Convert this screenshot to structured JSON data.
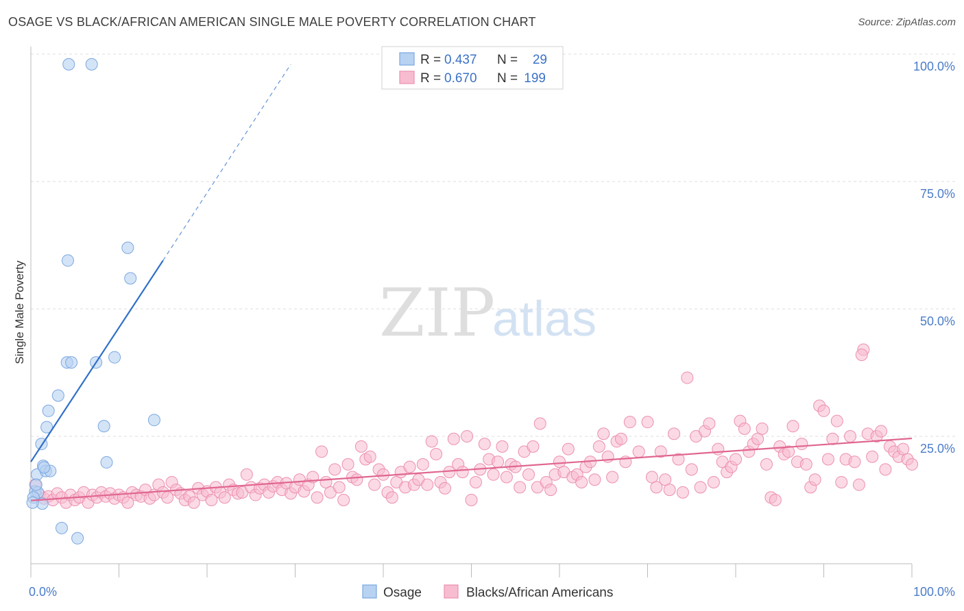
{
  "title": "OSAGE VS BLACK/AFRICAN AMERICAN SINGLE MALE POVERTY CORRELATION CHART",
  "source": "Source: ZipAtlas.com",
  "watermark": {
    "zip": "ZIP",
    "atlas": "atlas"
  },
  "colors": {
    "osage_fill": "#b8d2f2",
    "osage_stroke": "#7aa6df",
    "osage_line": "#2f6fc8",
    "black_fill": "#f7bcd0",
    "black_stroke": "#ec8fae",
    "black_line": "#e0668f",
    "tick": "#4a7cc9",
    "grid": "#dddddd"
  },
  "legend_top": {
    "rows": [
      {
        "r_label": "R =",
        "r_value": "0.437",
        "n_label": "N =",
        "n_value": "29"
      },
      {
        "r_label": "R =",
        "r_value": "0.670",
        "n_label": "N =",
        "n_value": "199"
      }
    ]
  },
  "legend_bottom": [
    "Osage",
    "Blacks/African Americans"
  ],
  "chart_data": {
    "type": "scatter",
    "xlabel": "",
    "ylabel": "Single Male Poverty",
    "xlim": [
      0,
      100
    ],
    "ylim": [
      0,
      100
    ],
    "x_tick_labels": [
      "0.0%",
      "100.0%"
    ],
    "y_tick_labels": [
      {
        "value": 25,
        "label": "25.0%"
      },
      {
        "value": 50,
        "label": "50.0%"
      },
      {
        "value": 75,
        "label": "75.0%"
      },
      {
        "value": 100,
        "label": "100.0%"
      }
    ],
    "grid": true,
    "legend_placement": "top-center and bottom",
    "series": [
      {
        "name": "Osage",
        "r": 0.437,
        "n": 29,
        "trend": {
          "x0": 0,
          "y0": 20.0,
          "x1": 15,
          "y1": 59.5,
          "dash_to_x": 29.5,
          "dash_to_y": 98
        },
        "points": [
          [
            4.3,
            98
          ],
          [
            6.9,
            98
          ],
          [
            0.7,
            17.5
          ],
          [
            0.5,
            14.2
          ],
          [
            0.8,
            14.0
          ],
          [
            1.2,
            23.5
          ],
          [
            1.4,
            19.2
          ],
          [
            1.7,
            18.2
          ],
          [
            2.2,
            18.2
          ],
          [
            1.5,
            18.9
          ],
          [
            2.0,
            30.0
          ],
          [
            1.8,
            26.8
          ],
          [
            3.1,
            33.0
          ],
          [
            4.1,
            39.5
          ],
          [
            4.6,
            39.5
          ],
          [
            7.4,
            39.5
          ],
          [
            9.5,
            40.5
          ],
          [
            4.2,
            59.5
          ],
          [
            11.3,
            56.0
          ],
          [
            11.0,
            62.0
          ],
          [
            8.3,
            27.0
          ],
          [
            8.6,
            19.9
          ],
          [
            14.0,
            28.2
          ],
          [
            3.5,
            7.0
          ],
          [
            5.3,
            5.0
          ],
          [
            0.3,
            13.0
          ],
          [
            1.3,
            11.8
          ],
          [
            0.6,
            15.5
          ],
          [
            0.2,
            12.0
          ]
        ]
      },
      {
        "name": "Blacks/African Americans",
        "r": 0.67,
        "n": 199,
        "trend": {
          "x0": 0,
          "y0": 12.4,
          "x1": 100,
          "y1": 24.6
        },
        "points": [
          [
            0.5,
            15.5
          ],
          [
            1.0,
            13.5
          ],
          [
            1.5,
            12.8
          ],
          [
            2.0,
            13.2
          ],
          [
            2.5,
            12.5
          ],
          [
            3.0,
            13.8
          ],
          [
            3.5,
            13.0
          ],
          [
            4.0,
            12.0
          ],
          [
            4.5,
            13.5
          ],
          [
            5.0,
            12.5
          ],
          [
            5.5,
            13.0
          ],
          [
            6.0,
            14.0
          ],
          [
            6.5,
            12.0
          ],
          [
            7.0,
            13.5
          ],
          [
            7.5,
            13.0
          ],
          [
            8.0,
            14.0
          ],
          [
            8.5,
            13.2
          ],
          [
            9.0,
            13.8
          ],
          [
            9.5,
            12.8
          ],
          [
            10.0,
            13.5
          ],
          [
            10.5,
            13.0
          ],
          [
            11.0,
            12.0
          ],
          [
            11.5,
            14.0
          ],
          [
            12.0,
            13.5
          ],
          [
            12.5,
            13.2
          ],
          [
            13.0,
            14.5
          ],
          [
            13.5,
            12.8
          ],
          [
            14.0,
            13.5
          ],
          [
            14.5,
            15.5
          ],
          [
            15.0,
            14.0
          ],
          [
            15.5,
            13.0
          ],
          [
            16.0,
            16.0
          ],
          [
            16.5,
            14.5
          ],
          [
            17.0,
            13.8
          ],
          [
            17.5,
            12.5
          ],
          [
            18.0,
            13.2
          ],
          [
            18.5,
            12.0
          ],
          [
            19.0,
            14.8
          ],
          [
            19.5,
            13.5
          ],
          [
            20.0,
            14.2
          ],
          [
            20.5,
            12.5
          ],
          [
            21.0,
            15.0
          ],
          [
            21.5,
            14.0
          ],
          [
            22.0,
            13.0
          ],
          [
            22.5,
            15.5
          ],
          [
            23.0,
            14.5
          ],
          [
            23.5,
            13.8
          ],
          [
            24.0,
            14.0
          ],
          [
            24.5,
            17.5
          ],
          [
            25.0,
            15.0
          ],
          [
            25.5,
            13.5
          ],
          [
            26.0,
            14.8
          ],
          [
            26.5,
            15.5
          ],
          [
            27.0,
            14.0
          ],
          [
            27.5,
            15.2
          ],
          [
            28.0,
            16.0
          ],
          [
            28.5,
            14.5
          ],
          [
            29.0,
            15.8
          ],
          [
            29.5,
            13.8
          ],
          [
            30.0,
            15.0
          ],
          [
            30.5,
            16.5
          ],
          [
            31.0,
            14.2
          ],
          [
            31.5,
            15.5
          ],
          [
            32.0,
            17.0
          ],
          [
            32.5,
            13.0
          ],
          [
            33.0,
            22.0
          ],
          [
            33.5,
            16.0
          ],
          [
            34.0,
            14.0
          ],
          [
            34.5,
            18.5
          ],
          [
            35.0,
            15.0
          ],
          [
            35.5,
            12.5
          ],
          [
            36.0,
            19.5
          ],
          [
            36.5,
            17.0
          ],
          [
            37.0,
            16.5
          ],
          [
            37.5,
            23.0
          ],
          [
            38.0,
            20.5
          ],
          [
            38.5,
            21.0
          ],
          [
            39.0,
            15.5
          ],
          [
            39.5,
            18.5
          ],
          [
            40.0,
            17.5
          ],
          [
            40.5,
            14.0
          ],
          [
            41.0,
            13.0
          ],
          [
            41.5,
            16.0
          ],
          [
            42.0,
            18.0
          ],
          [
            42.5,
            15.0
          ],
          [
            43.0,
            19.0
          ],
          [
            43.5,
            15.5
          ],
          [
            44.0,
            16.5
          ],
          [
            44.5,
            19.5
          ],
          [
            45.0,
            15.5
          ],
          [
            45.5,
            24.0
          ],
          [
            46.0,
            21.5
          ],
          [
            46.5,
            16.0
          ],
          [
            47.0,
            14.8
          ],
          [
            47.5,
            18.0
          ],
          [
            48.0,
            24.5
          ],
          [
            48.5,
            19.5
          ],
          [
            49.0,
            18.0
          ],
          [
            49.5,
            25.0
          ],
          [
            50.0,
            12.5
          ],
          [
            50.5,
            16.0
          ],
          [
            51.0,
            18.5
          ],
          [
            51.5,
            23.5
          ],
          [
            52.0,
            20.5
          ],
          [
            52.5,
            17.5
          ],
          [
            53.0,
            20.0
          ],
          [
            53.5,
            23.0
          ],
          [
            54.0,
            17.0
          ],
          [
            54.5,
            19.5
          ],
          [
            55.0,
            19.0
          ],
          [
            55.5,
            15.0
          ],
          [
            56.0,
            22.0
          ],
          [
            56.5,
            17.5
          ],
          [
            57.0,
            23.0
          ],
          [
            57.5,
            15.0
          ],
          [
            57.8,
            27.5
          ],
          [
            58.5,
            16.0
          ],
          [
            59.0,
            14.5
          ],
          [
            59.5,
            17.5
          ],
          [
            60.0,
            20.0
          ],
          [
            60.5,
            18.0
          ],
          [
            61.0,
            22.5
          ],
          [
            61.5,
            17.0
          ],
          [
            62.0,
            17.5
          ],
          [
            62.5,
            16.0
          ],
          [
            63.0,
            19.0
          ],
          [
            63.5,
            20.0
          ],
          [
            64.0,
            16.5
          ],
          [
            64.5,
            23.0
          ],
          [
            65.0,
            25.5
          ],
          [
            65.5,
            21.0
          ],
          [
            66.0,
            17.0
          ],
          [
            66.5,
            24.0
          ],
          [
            67.0,
            24.5
          ],
          [
            67.5,
            20.0
          ],
          [
            68.0,
            27.8
          ],
          [
            69.0,
            22.0
          ],
          [
            70.0,
            27.8
          ],
          [
            70.5,
            17.0
          ],
          [
            71.0,
            15.0
          ],
          [
            71.5,
            22.0
          ],
          [
            72.0,
            16.5
          ],
          [
            72.5,
            14.5
          ],
          [
            73.0,
            25.5
          ],
          [
            73.5,
            20.5
          ],
          [
            74.0,
            14.0
          ],
          [
            74.5,
            36.5
          ],
          [
            75.0,
            18.5
          ],
          [
            75.5,
            25.0
          ],
          [
            76.0,
            15.0
          ],
          [
            76.5,
            26.0
          ],
          [
            77.0,
            27.5
          ],
          [
            77.5,
            16.0
          ],
          [
            78.0,
            22.5
          ],
          [
            78.5,
            20.0
          ],
          [
            79.0,
            18.0
          ],
          [
            79.5,
            19.0
          ],
          [
            80.0,
            20.5
          ],
          [
            80.5,
            28.0
          ],
          [
            81.0,
            26.5
          ],
          [
            81.5,
            22.0
          ],
          [
            82.0,
            23.5
          ],
          [
            82.5,
            24.5
          ],
          [
            83.0,
            26.5
          ],
          [
            83.5,
            19.5
          ],
          [
            84.0,
            13.0
          ],
          [
            84.5,
            12.5
          ],
          [
            85.0,
            23.0
          ],
          [
            85.5,
            21.5
          ],
          [
            86.0,
            22.0
          ],
          [
            86.5,
            27.0
          ],
          [
            87.0,
            20.0
          ],
          [
            87.5,
            23.5
          ],
          [
            88.0,
            19.5
          ],
          [
            88.5,
            15.0
          ],
          [
            89.0,
            16.5
          ],
          [
            89.5,
            31.0
          ],
          [
            90.0,
            30.0
          ],
          [
            90.5,
            20.5
          ],
          [
            91.0,
            24.5
          ],
          [
            91.5,
            28.0
          ],
          [
            92.0,
            16.0
          ],
          [
            92.5,
            20.5
          ],
          [
            93.0,
            25.0
          ],
          [
            93.5,
            20.0
          ],
          [
            94.0,
            15.5
          ],
          [
            94.5,
            42.0
          ],
          [
            94.3,
            41.0
          ],
          [
            95.0,
            25.5
          ],
          [
            95.5,
            21.0
          ],
          [
            96.0,
            25.0
          ],
          [
            96.5,
            26.0
          ],
          [
            97.0,
            18.5
          ],
          [
            97.5,
            23.0
          ],
          [
            98.0,
            22.0
          ],
          [
            98.5,
            21.0
          ],
          [
            99.0,
            22.5
          ],
          [
            99.5,
            20.5
          ],
          [
            100.0,
            19.5
          ]
        ]
      }
    ]
  }
}
